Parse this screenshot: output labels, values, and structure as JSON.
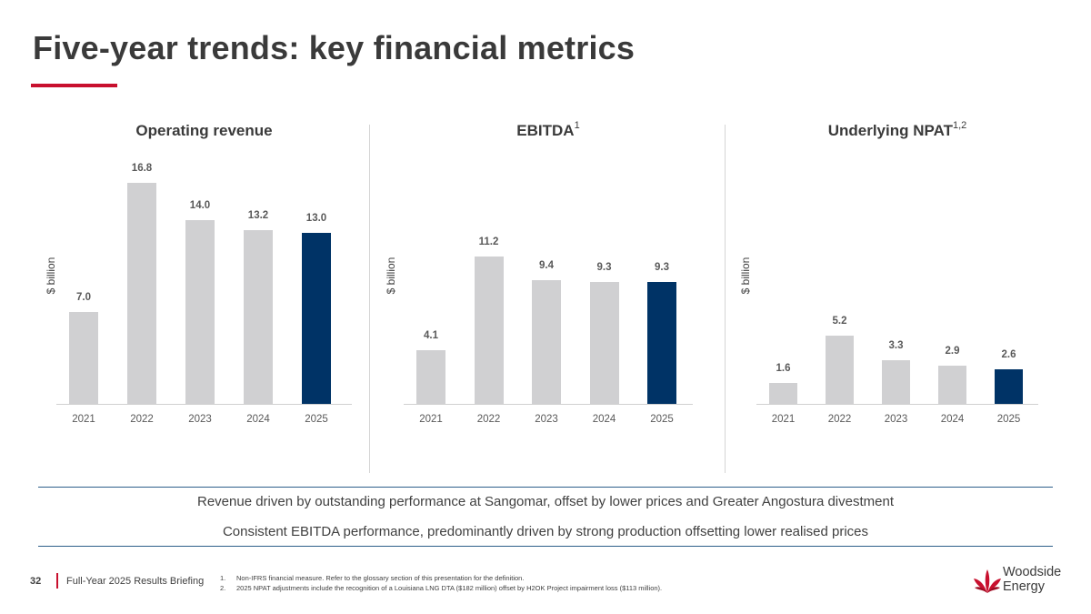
{
  "page": {
    "title": "Five-year trends: key financial metrics",
    "commentary": [
      "Revenue driven by outstanding performance at Sangomar, offset by lower prices and Greater Angostura divestment",
      "Consistent EBITDA performance, predominantly driven by strong production offsetting lower realised prices"
    ]
  },
  "footer": {
    "page_number": "32",
    "briefing": "Full-Year 2025 Results Briefing",
    "footnotes": [
      {
        "num": "1.",
        "text": "Non-IFRS financial measure. Refer to the glossary section of this presentation for the definition."
      },
      {
        "num": "2.",
        "text": "2025 NPAT adjustments include the recognition of a Louisiana LNG DTA ($182 million) offset by H2OK Project impairment loss ($113 million)."
      }
    ]
  },
  "logo": {
    "line1": "Woodside",
    "line2": "Energy"
  },
  "colors": {
    "accent": "#c8102e",
    "bar_grey": "#d0d0d2",
    "bar_highlight": "#003366",
    "rule": "#2e5f8a"
  },
  "chart_data": [
    {
      "type": "bar",
      "title": "Operating revenue",
      "title_sup": "",
      "ylabel": "$ billion",
      "categories": [
        "2021",
        "2022",
        "2023",
        "2024",
        "2025"
      ],
      "values": [
        7.0,
        16.8,
        14.0,
        13.2,
        13.0
      ],
      "data_labels": [
        "7.0",
        "16.8",
        "14.0",
        "13.2",
        "13.0"
      ],
      "ylim": [
        0,
        18
      ],
      "highlight_category": "2025"
    },
    {
      "type": "bar",
      "title": "EBITDA",
      "title_sup": "1",
      "ylabel": "$ billion",
      "categories": [
        "2021",
        "2022",
        "2023",
        "2024",
        "2025"
      ],
      "values": [
        4.1,
        11.2,
        9.4,
        9.3,
        9.3
      ],
      "data_labels": [
        "4.1",
        "11.2",
        "9.4",
        "9.3",
        "9.3"
      ],
      "ylim": [
        0,
        18
      ],
      "highlight_category": "2025"
    },
    {
      "type": "bar",
      "title": "Underlying NPAT",
      "title_sup": "1,2",
      "ylabel": "$ billion",
      "categories": [
        "2021",
        "2022",
        "2023",
        "2024",
        "2025"
      ],
      "values": [
        1.6,
        5.2,
        3.3,
        2.9,
        2.6
      ],
      "data_labels": [
        "1.6",
        "5.2",
        "3.3",
        "2.9",
        "2.6"
      ],
      "ylim": [
        0,
        18
      ],
      "highlight_category": "2025"
    }
  ]
}
